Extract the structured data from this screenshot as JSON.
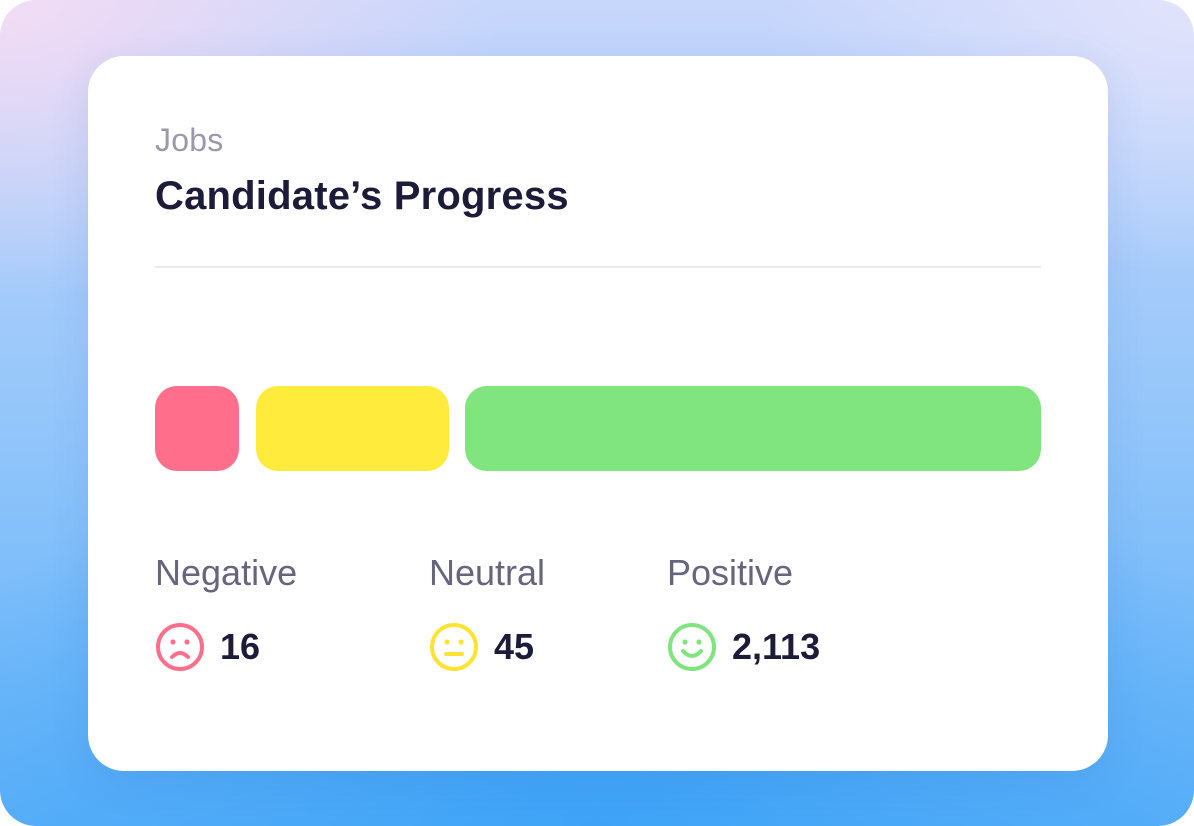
{
  "card": {
    "eyebrow": "Jobs",
    "title": "Candidate’s Progress"
  },
  "progress": {
    "segments": [
      {
        "key": "negative",
        "value": 16,
        "color": "#ff6f8b"
      },
      {
        "key": "neutral",
        "value": 45,
        "color": "#ffeb3c"
      },
      {
        "key": "positive",
        "value": 2113,
        "color": "#80e57f"
      }
    ]
  },
  "stats": {
    "negative": {
      "label": "Negative",
      "value": "16",
      "icon": "sad-face-icon",
      "color": "#ff6f8b"
    },
    "neutral": {
      "label": "Neutral",
      "value": "45",
      "icon": "neutral-face-icon",
      "color": "#ffeb3c"
    },
    "positive": {
      "label": "Positive",
      "value": "2,113",
      "icon": "smile-face-icon",
      "color": "#80e57f"
    }
  }
}
